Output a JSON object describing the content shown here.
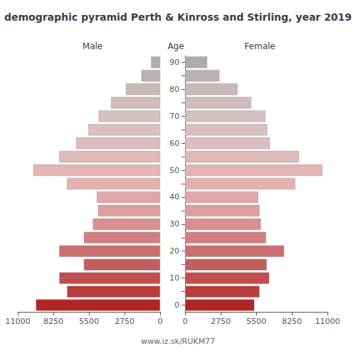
{
  "chart_data": {
    "type": "bar",
    "orientation": "horizontal",
    "title": "demographic pyramid Perth & Kinross and Stirling, year 2019",
    "ylabel": "Age",
    "annotations": [
      "www.iz.sk/RUKM77"
    ],
    "categories": [
      "90",
      null,
      "80",
      null,
      "70",
      null,
      "60",
      null,
      "50",
      null,
      "40",
      null,
      "30",
      null,
      "20",
      null,
      "10",
      null,
      "0"
    ],
    "series": [
      {
        "name": "Male",
        "values": [
          700,
          1450,
          2650,
          3800,
          4750,
          5550,
          6500,
          7800,
          9800,
          7200,
          4900,
          4800,
          5200,
          5900,
          7800,
          5900,
          7800,
          7200,
          9600
        ]
      },
      {
        "name": "Female",
        "values": [
          1700,
          2650,
          4050,
          5100,
          6200,
          6350,
          6550,
          8800,
          10600,
          8500,
          5650,
          5750,
          5850,
          6250,
          7650,
          6300,
          6500,
          5750,
          5350
        ]
      }
    ],
    "colors": [
      "#b0abab",
      "#bcb2b2",
      "#c9b9b9",
      "#d0bdbd",
      "#d5c1c1",
      "#d9c1c1",
      "#dcbcbc",
      "#dfb9b9",
      "#e3b5b5",
      "#e5b0b0",
      "#e2a8a8",
      "#de9e9e",
      "#d98f8f",
      "#d47f7f",
      "#cb6d6d",
      "#c55d5d",
      "#bf4d4d",
      "#ba3d3d",
      "#b32424"
    ],
    "xlim": [
      0,
      11000
    ],
    "xticks": [
      0,
      2750,
      5500,
      8250,
      11000
    ],
    "grid": false
  }
}
